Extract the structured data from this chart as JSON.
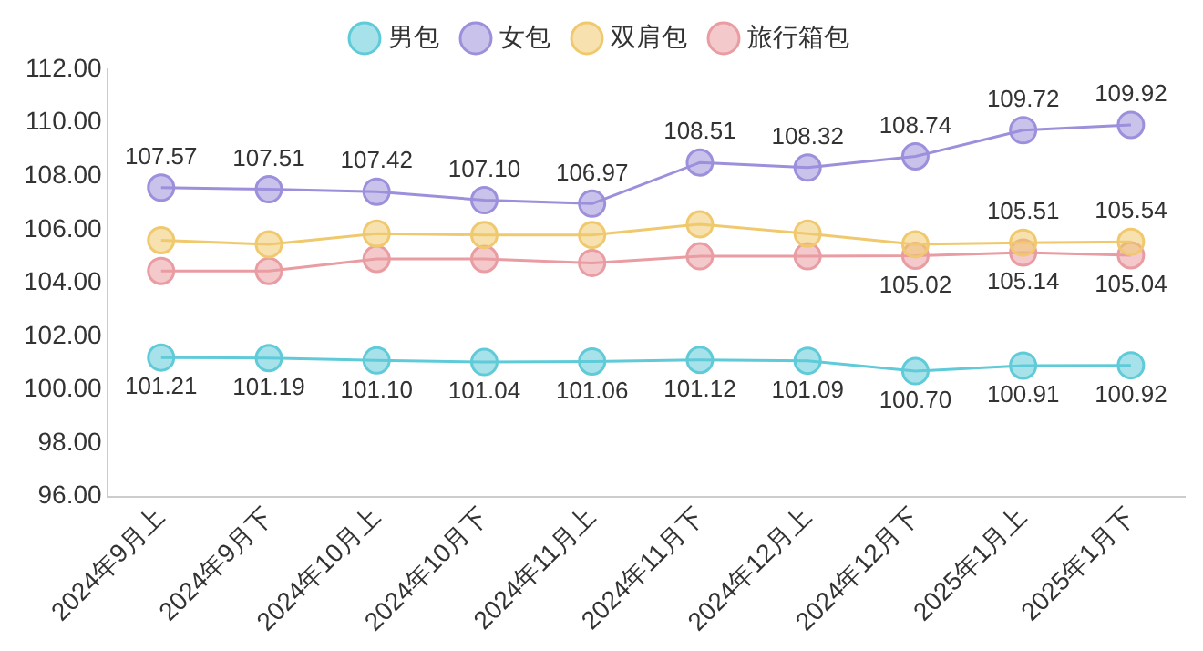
{
  "chart_data": {
    "type": "line",
    "categories": [
      "2024年9月上",
      "2024年9月下",
      "2024年10月上",
      "2024年10月下",
      "2024年11月上",
      "2024年11月下",
      "2024年12月上",
      "2024年12月下",
      "2025年1月上",
      "2025年1月下"
    ],
    "series": [
      {
        "name": "男包",
        "color": "#5fcbd8",
        "values": [
          101.21,
          101.19,
          101.1,
          101.04,
          101.06,
          101.12,
          101.09,
          100.7,
          100.91,
          100.92
        ],
        "value_labels": [
          "101.21",
          "101.19",
          "101.10",
          "101.04",
          "101.06",
          "101.12",
          "101.09",
          "100.70",
          "100.91",
          "100.92"
        ]
      },
      {
        "name": "女包",
        "color": "#9d8fdb",
        "values": [
          107.57,
          107.51,
          107.42,
          107.1,
          106.97,
          108.51,
          108.32,
          108.74,
          109.72,
          109.92
        ],
        "value_labels": [
          "107.57",
          "107.51",
          "107.42",
          "107.10",
          "106.97",
          "108.51",
          "108.32",
          "108.74",
          "109.72",
          "109.92"
        ]
      },
      {
        "name": "双肩包",
        "color": "#f0c96e",
        "values": [
          105.6,
          105.45,
          105.85,
          105.8,
          105.8,
          106.2,
          105.85,
          105.45,
          105.51,
          105.54
        ],
        "value_labels": [
          null,
          null,
          null,
          null,
          null,
          null,
          null,
          null,
          "105.51",
          "105.54"
        ]
      },
      {
        "name": "旅行箱包",
        "color": "#e99ca2",
        "values": [
          104.45,
          104.45,
          104.9,
          104.9,
          104.75,
          105.0,
          105.0,
          105.02,
          105.14,
          105.04
        ],
        "value_labels": [
          null,
          null,
          null,
          null,
          null,
          null,
          null,
          "105.02",
          "105.14",
          "105.04"
        ]
      }
    ],
    "ylim": [
      96,
      112
    ],
    "yticks": [
      {
        "value": 96,
        "label": "96.00"
      },
      {
        "value": 98,
        "label": "98.00"
      },
      {
        "value": 100,
        "label": "100.00"
      },
      {
        "value": 102,
        "label": "102.00"
      },
      {
        "value": 104,
        "label": "104.00"
      },
      {
        "value": 106,
        "label": "106.00"
      },
      {
        "value": 108,
        "label": "108.00"
      },
      {
        "value": 110,
        "label": "110.00"
      },
      {
        "value": 112,
        "label": "112.00"
      }
    ],
    "grid": false,
    "legend": "top",
    "marker": "circle",
    "line_style": "solid"
  }
}
